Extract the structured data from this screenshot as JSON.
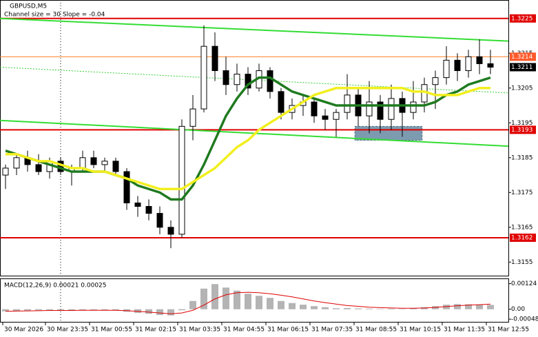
{
  "chart_data": [
    {
      "type": "candlestick",
      "title": "GBPUSD,M5",
      "subtitle": "Channel size = 30 Slope = -0.04",
      "xlim": [
        -0.5,
        45.625
      ],
      "ylim": [
        1.31511,
        1.32303
      ],
      "yticks": [
        1.3215,
        1.3205,
        1.3195,
        1.3185,
        1.3175,
        1.3165,
        1.3155
      ],
      "open": [
        1.318,
        1.3182,
        1.3185,
        1.3183,
        1.3181,
        1.3184,
        1.3181,
        1.3182,
        1.3185,
        1.3183,
        1.3184,
        1.3181,
        1.3172,
        1.3171,
        1.3169,
        1.3165,
        1.3163,
        1.3194,
        1.3199,
        1.3217,
        1.321,
        1.3206,
        1.3209,
        1.3205,
        1.321,
        1.3204,
        1.3198,
        1.32,
        1.3201,
        1.3197,
        1.3196,
        1.3198,
        1.3203,
        1.3197,
        1.3201,
        1.3196,
        1.3202,
        1.3198,
        1.3201,
        1.3206,
        1.3208,
        1.3213,
        1.321,
        1.3214,
        1.3212
      ],
      "high": [
        1.3183,
        1.3186,
        1.3187,
        1.3186,
        1.3185,
        1.3185,
        1.3183,
        1.3187,
        1.3187,
        1.3185,
        1.3185,
        1.3182,
        1.3174,
        1.3173,
        1.3171,
        1.3167,
        1.3196,
        1.3203,
        1.3223,
        1.3221,
        1.3214,
        1.3212,
        1.3211,
        1.3212,
        1.3211,
        1.3205,
        1.3202,
        1.3203,
        1.3202,
        1.3199,
        1.3199,
        1.3209,
        1.3205,
        1.3207,
        1.3203,
        1.3206,
        1.3204,
        1.3207,
        1.3208,
        1.321,
        1.3217,
        1.3215,
        1.3216,
        1.3219,
        1.3216
      ],
      "low": [
        1.3176,
        1.318,
        1.3181,
        1.318,
        1.3179,
        1.318,
        1.3177,
        1.3181,
        1.3182,
        1.3181,
        1.318,
        1.317,
        1.3168,
        1.3167,
        1.3163,
        1.3159,
        1.3162,
        1.319,
        1.3198,
        1.3207,
        1.3203,
        1.3204,
        1.3203,
        1.3204,
        1.3202,
        1.3196,
        1.3196,
        1.3197,
        1.3195,
        1.3193,
        1.3191,
        1.3196,
        1.3194,
        1.3192,
        1.3192,
        1.3193,
        1.3191,
        1.3196,
        1.3198,
        1.3199,
        1.3206,
        1.3207,
        1.3208,
        1.3209,
        1.3209
      ],
      "close": [
        1.3182,
        1.3185,
        1.3183,
        1.3181,
        1.3184,
        1.3181,
        1.3182,
        1.3185,
        1.3183,
        1.3184,
        1.3181,
        1.3172,
        1.3171,
        1.3169,
        1.3165,
        1.3163,
        1.3194,
        1.3199,
        1.3217,
        1.321,
        1.3206,
        1.3209,
        1.3205,
        1.321,
        1.3204,
        1.3198,
        1.32,
        1.3201,
        1.3197,
        1.3196,
        1.3198,
        1.3203,
        1.3197,
        1.3201,
        1.3196,
        1.3202,
        1.3198,
        1.3201,
        1.3206,
        1.3208,
        1.3213,
        1.321,
        1.3214,
        1.3212,
        1.3211
      ],
      "moving_averages": [
        {
          "color": "#1f7a1f",
          "width": 3.5,
          "values": [
            1.3187,
            1.3186,
            1.3185,
            1.3184,
            1.3183,
            1.3182,
            1.3181,
            1.3181,
            1.3181,
            1.3181,
            1.318,
            1.3179,
            1.3177,
            1.3176,
            1.3175,
            1.3173,
            1.3173,
            1.3177,
            1.3183,
            1.319,
            1.3197,
            1.3202,
            1.3206,
            1.3208,
            1.3208,
            1.3206,
            1.3204,
            1.3203,
            1.3202,
            1.3201,
            1.32,
            1.32,
            1.32,
            1.32,
            1.32,
            1.32,
            1.32,
            1.32,
            1.32,
            1.3201,
            1.3203,
            1.3204,
            1.3206,
            1.3207,
            1.3208
          ]
        },
        {
          "color": "#f2ef1e",
          "width": 3.5,
          "values": [
            1.3186,
            1.3186,
            1.3185,
            1.3184,
            1.3184,
            1.3183,
            1.3182,
            1.3182,
            1.3181,
            1.3181,
            1.318,
            1.3179,
            1.3178,
            1.3177,
            1.3176,
            1.3176,
            1.3176,
            1.3178,
            1.318,
            1.3182,
            1.3185,
            1.3188,
            1.319,
            1.3193,
            1.3195,
            1.3197,
            1.3199,
            1.3201,
            1.3203,
            1.3204,
            1.3205,
            1.3205,
            1.3205,
            1.3205,
            1.3205,
            1.3205,
            1.3205,
            1.3204,
            1.3204,
            1.3203,
            1.3203,
            1.3203,
            1.3204,
            1.3205,
            1.3205
          ]
        }
      ],
      "channel_lines": [
        {
          "color": "#33dd33",
          "x": [
            -0.5,
            45.625
          ],
          "values": [
            1.3225,
            1.32185
          ]
        },
        {
          "color": "#33dd33",
          "x": [
            -0.5,
            45.625
          ],
          "values": [
            1.31957,
            1.31883
          ]
        },
        {
          "color": "#33cc33",
          "dashed": true,
          "x": [
            -0.5,
            45.625
          ],
          "values": [
            1.3211,
            1.32036
          ]
        }
      ],
      "levels": [
        {
          "value": 1.3225,
          "color": "#e00000",
          "label_bg": "#e00000"
        },
        {
          "value": 1.3214,
          "color": "#ff7f27",
          "label_bg": "#ff5a2a"
        },
        {
          "value": 1.3211,
          "label_bg": "#000000"
        },
        {
          "value": 1.3193,
          "color": "#e00000",
          "label_bg": "#e00000"
        },
        {
          "value": 1.3162,
          "color": "#e00000",
          "label_bg": "#e00000"
        }
      ],
      "separators": [
        5
      ],
      "zone": {
        "x": [
          31.7,
          37.8
        ],
        "y": [
          1.319,
          1.3194
        ],
        "color": "#7d9bb0"
      }
    },
    {
      "type": "macd",
      "title": "MACD(12,26,9) 0.00021 0.00025",
      "xlim": [
        -0.5,
        45.625
      ],
      "ylim": [
        -0.00061,
        0.00146
      ],
      "yticks": [
        0.00124,
        {
          "value": 0,
          "label": "0.00"
        },
        -0.00048
      ],
      "xticks": [
        {
          "value": -0.25,
          "label": "30 Mar 2026"
        },
        {
          "value": 3.625,
          "label": "30 Mar 23:35"
        },
        {
          "value": 7.625,
          "label": "31 Mar 00:55"
        },
        {
          "value": 11.625,
          "label": "31 Mar 02:15"
        },
        {
          "value": 15.625,
          "label": "31 Mar 03:35"
        },
        {
          "value": 19.625,
          "label": "31 Mar 04:55"
        },
        {
          "value": 23.625,
          "label": "31 Mar 06:15"
        },
        {
          "value": 27.625,
          "label": "31 Mar 07:35"
        },
        {
          "value": 31.625,
          "label": "31 Mar 08:55"
        },
        {
          "value": 35.625,
          "label": "31 Mar 10:15"
        },
        {
          "value": 39.625,
          "label": "31 Mar 11:35"
        },
        {
          "value": 43.625,
          "label": "31 Mar 12:55"
        }
      ],
      "histogram": {
        "color": "#b4b4b4",
        "values": [
          -0.0001,
          -8e-05,
          -6e-05,
          -5e-05,
          -4e-05,
          -5e-05,
          -6e-05,
          -5e-05,
          -4e-05,
          -4e-05,
          -6e-05,
          -0.00012,
          -0.00018,
          -0.00022,
          -0.00028,
          -0.0003,
          -5e-05,
          0.0004,
          0.001,
          0.00122,
          0.00105,
          0.0009,
          0.00075,
          0.00065,
          0.00055,
          0.0004,
          0.0003,
          0.00022,
          0.00015,
          0.0001,
          5e-05,
          6e-05,
          4e-05,
          3e-05,
          2e-05,
          3e-05,
          2e-05,
          5e-05,
          0.0001,
          0.00015,
          0.00022,
          0.00025,
          0.00024,
          0.00023,
          0.00021
        ]
      },
      "signal": {
        "color": "#e00000",
        "values": [
          -0.0001,
          -9e-05,
          -8e-05,
          -7e-05,
          -6e-05,
          -6e-05,
          -6e-05,
          -5e-05,
          -5e-05,
          -5e-05,
          -5e-05,
          -7e-05,
          -0.0001,
          -0.00014,
          -0.00018,
          -0.00022,
          -0.00018,
          -5e-05,
          0.0002,
          0.0005,
          0.0007,
          0.0008,
          0.00082,
          0.0008,
          0.00075,
          0.00068,
          0.0006,
          0.0005,
          0.0004,
          0.00032,
          0.00025,
          0.00018,
          0.00014,
          0.0001,
          8e-05,
          6e-05,
          5e-05,
          5e-05,
          6e-05,
          9e-05,
          0.00013,
          0.00017,
          0.0002,
          0.00022,
          0.00025
        ]
      }
    }
  ]
}
